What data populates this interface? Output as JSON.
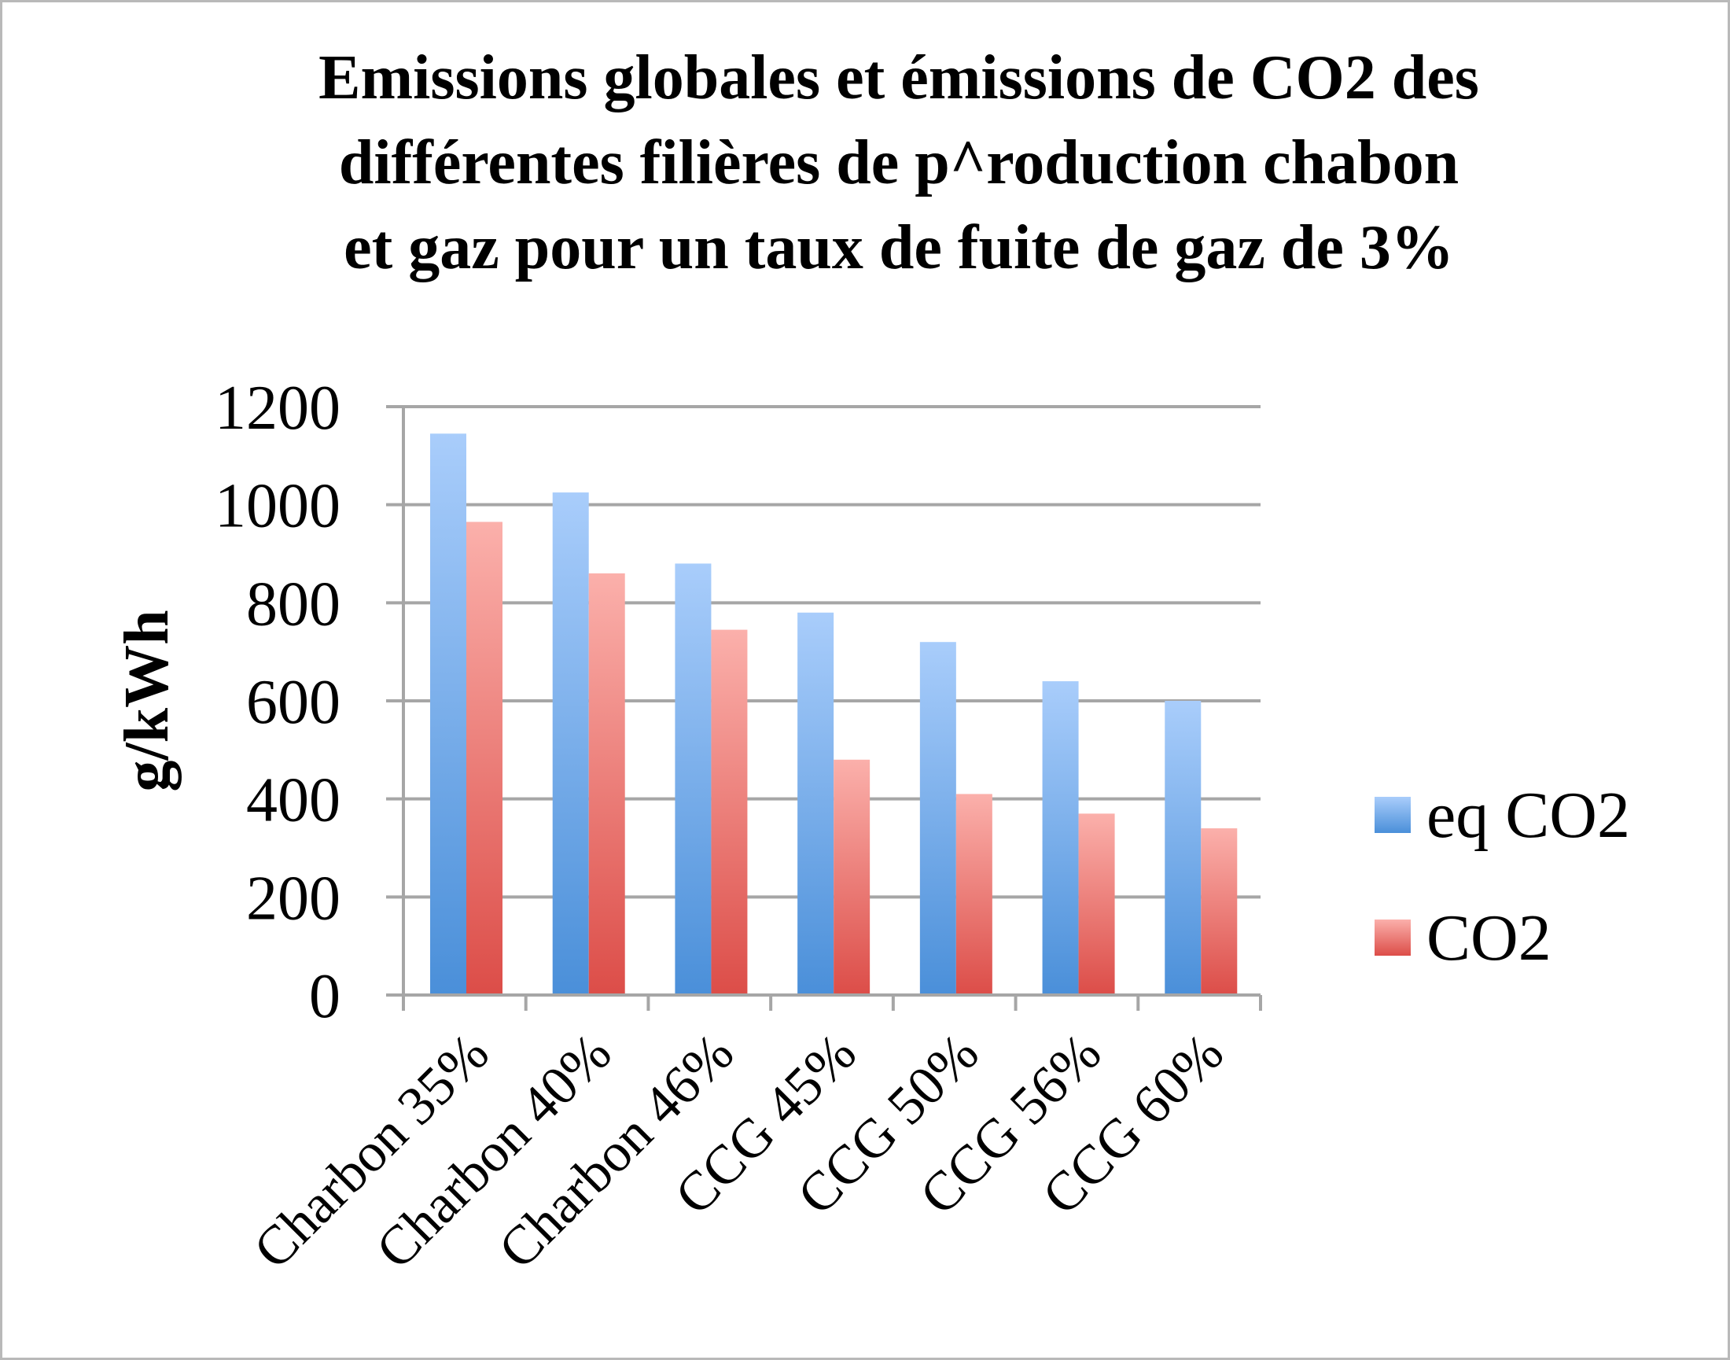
{
  "chart_data": {
    "type": "bar",
    "title_lines": [
      "Emissions globales et émissions de CO2 des",
      "différentes filières de p^roduction chabon",
      "et gaz pour un taux de fuite de gaz de 3%"
    ],
    "xlabel": "",
    "ylabel": "g/kWh",
    "ylim": [
      0,
      1200
    ],
    "yticks": [
      "0",
      "200",
      "400",
      "600",
      "800",
      "1000",
      "1200"
    ],
    "grid": true,
    "legend_position": "right",
    "categories": [
      "Charbon 35%",
      "Charbon 40%",
      "Charbon 46%",
      "CCG 45%",
      "CCG 50%",
      "CCG 56%",
      "CCG 60%"
    ],
    "series": [
      {
        "name": "eq CO2",
        "color": "#5b9bd5",
        "values": [
          1145,
          1025,
          880,
          780,
          720,
          640,
          600
        ]
      },
      {
        "name": "CO2",
        "color": "#e06662",
        "values": [
          965,
          860,
          745,
          480,
          410,
          370,
          340
        ]
      }
    ]
  }
}
